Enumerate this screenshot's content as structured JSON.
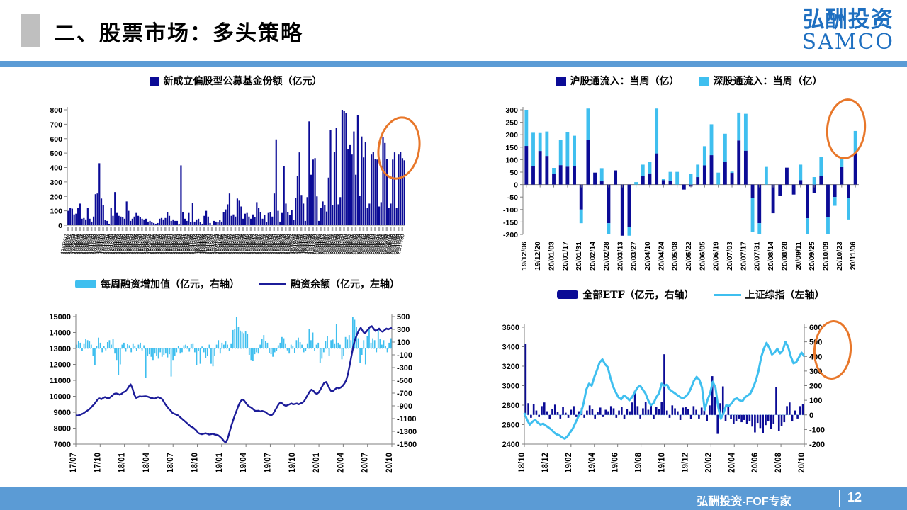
{
  "header": {
    "title": "二、股票市场：多头策略",
    "logo_cn": "弘酬投资",
    "logo_en": "SAMCO"
  },
  "footer": {
    "text": "弘酬投资-FOF专家",
    "page": "12"
  },
  "colors": {
    "navy": "#0B0B96",
    "navy_line": "#1C1C99",
    "sky": "#3FBFEF",
    "accent": "#5B9BD5",
    "orange": "#E8772A",
    "gray_box": "#BFBFBF",
    "axis": "#7F7F7F"
  },
  "chart_data": [
    {
      "type": "bar",
      "legend": "新成立偏股型公募基金份额（亿元）",
      "ylim": [
        0,
        800
      ],
      "yticks": [
        800,
        700,
        600,
        500,
        400,
        300,
        200,
        100,
        0
      ],
      "x_labels_start": "2017-07-07",
      "x_labels_interval_days": 7,
      "values": [
        100,
        120,
        115,
        75,
        80,
        120,
        150,
        45,
        50,
        40,
        120,
        45,
        25,
        60,
        215,
        220,
        430,
        185,
        140,
        35,
        30,
        10,
        120,
        65,
        230,
        85,
        65,
        60,
        55,
        45,
        165,
        100,
        30,
        45,
        60,
        85,
        65,
        55,
        45,
        40,
        45,
        25,
        30,
        20,
        15,
        10,
        15,
        45,
        50,
        40,
        50,
        90,
        65,
        30,
        40,
        30,
        30,
        10,
        415,
        90,
        45,
        30,
        85,
        20,
        155,
        25,
        40,
        45,
        20,
        10,
        65,
        100,
        60,
        15,
        5,
        30,
        25,
        20,
        35,
        25,
        90,
        110,
        145,
        220,
        65,
        75,
        60,
        185,
        170,
        130,
        45,
        80,
        85,
        60,
        45,
        75,
        55,
        160,
        120,
        90,
        45,
        70,
        20,
        85,
        90,
        60,
        220,
        595,
        100,
        25,
        85,
        410,
        150,
        90,
        70,
        105,
        35,
        190,
        340,
        505,
        210,
        150,
        30,
        195,
        720,
        350,
        455,
        465,
        200,
        30,
        120,
        165,
        140,
        95,
        330,
        660,
        140,
        510,
        675,
        145,
        195,
        800,
        795,
        780,
        525,
        560,
        490,
        650,
        350,
        765,
        205,
        615,
        470,
        575,
        120,
        150,
        490,
        510,
        460,
        455,
        130,
        160,
        610,
        570,
        460,
        120,
        150,
        455,
        505,
        120,
        490,
        510,
        465,
        450
      ]
    },
    {
      "type": "stacked-bar",
      "ylim": [
        -200,
        300
      ],
      "yticks": [
        300,
        250,
        200,
        150,
        100,
        50,
        0,
        -50,
        -100,
        -150,
        -200
      ],
      "series": [
        {
          "name": "沪股通流入：当周（亿）",
          "values": [
            155,
            75,
            135,
            115,
            42,
            78,
            72,
            74,
            -100,
            180,
            48,
            13,
            -155,
            57,
            -205,
            -170,
            0,
            33,
            45,
            125,
            18,
            15,
            0,
            -20,
            -8,
            30,
            77,
            118,
            0,
            92,
            47,
            177,
            136,
            -55,
            -155,
            0,
            -115,
            -45,
            68,
            -40,
            18,
            -135,
            -35,
            33,
            -130,
            -50,
            70,
            -55,
            127
          ]
        },
        {
          "name": "深股通流入：当周（亿）",
          "values": [
            145,
            133,
            72,
            98,
            25,
            100,
            138,
            122,
            -55,
            125,
            0,
            53,
            -45,
            0,
            0,
            -35,
            10,
            47,
            47,
            180,
            5,
            36,
            51,
            0,
            42,
            50,
            77,
            124,
            48,
            112,
            5,
            112,
            148,
            -135,
            -45,
            71,
            0,
            0,
            0,
            0,
            62,
            -65,
            30,
            77,
            -70,
            -35,
            42,
            -85,
            88
          ]
        }
      ],
      "x_tick_labels": [
        "19/12/06",
        "19/12/20",
        "20/01/03",
        "20/01/17",
        "20/01/31",
        "20/02/14",
        "20/02/28",
        "20/03/13",
        "20/03/27",
        "20/04/10",
        "20/04/24",
        "20/05/08",
        "20/05/22",
        "20/06/05",
        "20/06/19",
        "20/07/03",
        "20/07/17",
        "20/07/31",
        "20/08/14",
        "20/08/28",
        "20/09/11",
        "20/09/25",
        "20/10/09",
        "20/10/23",
        "20/11/06"
      ]
    },
    {
      "type": "bar+line",
      "left_lim": [
        7000,
        15000
      ],
      "left_ticks": [
        15000,
        14000,
        13000,
        12000,
        11000,
        10000,
        9000,
        8000,
        7000
      ],
      "right_lim": [
        -1500,
        500
      ],
      "right_ticks": [
        500,
        300,
        100,
        -100,
        -300,
        -500,
        -700,
        -900,
        -1100,
        -1300,
        -1500
      ],
      "x_tick_labels": [
        "17/07",
        "17/10",
        "18/01",
        "18/04",
        "18/07",
        "18/10",
        "19/01",
        "19/04",
        "19/07",
        "19/10",
        "20/01",
        "20/04",
        "20/07",
        "20/10"
      ],
      "bar_series": {
        "name": "每周融资增加值（亿元，右轴）",
        "axis": "right",
        "values": [
          60,
          120,
          90,
          -40,
          80,
          150,
          130,
          110,
          60,
          -120,
          -260,
          40,
          170,
          90,
          -60,
          40,
          -30,
          100,
          130,
          60,
          150,
          -80,
          -180,
          -420,
          -250,
          60,
          90,
          -50,
          70,
          50,
          -60,
          80,
          40,
          -40,
          60,
          90,
          -30,
          50,
          -460,
          -120,
          -90,
          -130,
          -180,
          -80,
          -120,
          -160,
          -60,
          -130,
          -100,
          -80,
          -140,
          -90,
          -440,
          -180,
          -120,
          -60,
          40,
          -80,
          -60,
          50,
          60,
          40,
          -50,
          70,
          80,
          -60,
          -260,
          -40,
          -240,
          30,
          -60,
          -150,
          -120,
          60,
          -240,
          -280,
          -120,
          60,
          130,
          -80,
          90,
          60,
          110,
          60,
          -40,
          80,
          290,
          310,
          490,
          340,
          280,
          260,
          240,
          270,
          230,
          -100,
          -180,
          -200,
          -90,
          -60,
          -80,
          60,
          150,
          210,
          120,
          90,
          -70,
          -90,
          -130,
          -60,
          -40,
          50,
          90,
          180,
          160,
          80,
          -30,
          -80,
          60,
          40,
          -70,
          130,
          170,
          100,
          60,
          -60,
          -40,
          80,
          310,
          130,
          250,
          -40,
          60,
          90,
          -230,
          -160,
          -60,
          120,
          200,
          -120,
          130,
          140,
          80,
          380,
          90,
          60,
          -170,
          -120,
          180,
          140,
          210,
          130,
          490,
          450,
          340,
          160,
          -230,
          -100,
          130,
          -250,
          200,
          310,
          90,
          160,
          130,
          -60,
          310,
          150,
          60,
          130,
          40,
          -60,
          90,
          160
        ]
      },
      "line_series": {
        "name": "融资余额（亿元，左轴）",
        "axis": "left",
        "values": [
          8800,
          8790,
          8820,
          8870,
          8920,
          9000,
          9080,
          9150,
          9250,
          9380,
          9500,
          9650,
          9800,
          9870,
          9820,
          9900,
          9950,
          9900,
          9870,
          9950,
          10050,
          10150,
          10180,
          10150,
          10100,
          10150,
          10250,
          10300,
          10420,
          10600,
          10750,
          10500,
          10100,
          9900,
          9950,
          10000,
          9980,
          9990,
          10000,
          9990,
          9950,
          9900,
          9880,
          9850,
          9900,
          9950,
          9900,
          9850,
          9700,
          9500,
          9350,
          9200,
          9100,
          8950,
          8900,
          8850,
          8800,
          8700,
          8600,
          8500,
          8400,
          8300,
          8200,
          8100,
          8050,
          7950,
          7850,
          7700,
          7650,
          7620,
          7650,
          7680,
          7650,
          7600,
          7620,
          7650,
          7600,
          7580,
          7550,
          7450,
          7350,
          7200,
          7100,
          7300,
          7700,
          8100,
          8450,
          8800,
          9100,
          9400,
          9650,
          9800,
          9750,
          9600,
          9450,
          9350,
          9300,
          9200,
          9100,
          9080,
          9100,
          9050,
          9080,
          9050,
          9000,
          8900,
          8850,
          8800,
          8900,
          9100,
          9300,
          9500,
          9620,
          9550,
          9450,
          9400,
          9450,
          9500,
          9550,
          9500,
          9520,
          9550,
          9500,
          9550,
          9600,
          9700,
          9900,
          10100,
          10300,
          10420,
          10350,
          10200,
          10150,
          10250,
          10450,
          10650,
          10850,
          10900,
          10700,
          10450,
          10300,
          10350,
          10450,
          10550,
          10500,
          10550,
          10650,
          10800,
          11000,
          11400,
          12000,
          12600,
          13200,
          13600,
          13900,
          14150,
          14300,
          14100,
          13950,
          14050,
          14200,
          14350,
          14400,
          14250,
          14100,
          14150,
          14250,
          14100,
          14050,
          14150,
          14250,
          14200,
          14250,
          14300
        ]
      }
    },
    {
      "type": "bar+line",
      "left_lim": [
        2400,
        3600
      ],
      "left_ticks": [
        3600,
        3400,
        3200,
        3000,
        2800,
        2600,
        2400
      ],
      "right_lim": [
        -200,
        600
      ],
      "right_ticks": [
        600,
        500,
        400,
        300,
        200,
        100,
        0,
        -100,
        -200
      ],
      "x_tick_labels": [
        "18/10",
        "18/12",
        "19/02",
        "19/04",
        "19/06",
        "19/08",
        "19/10",
        "19/12",
        "20/02",
        "20/04",
        "20/06",
        "20/08",
        "20/10"
      ],
      "bar_series": {
        "name": "全部ETF（亿元，右轴）",
        "axis": "right",
        "values": [
          485,
          80,
          -20,
          75,
          30,
          -15,
          60,
          85,
          25,
          -30,
          40,
          70,
          20,
          -25,
          55,
          15,
          -20,
          35,
          60,
          -15,
          25,
          45,
          -20,
          30,
          65,
          40,
          -25,
          20,
          50,
          -15,
          35,
          25,
          60,
          45,
          -20,
          30,
          55,
          -30,
          40,
          25,
          85,
          165,
          60,
          -25,
          45,
          90,
          35,
          70,
          -30,
          55,
          40,
          90,
          415,
          30,
          -20,
          65,
          45,
          25,
          -35,
          50,
          55,
          40,
          -30,
          60,
          35,
          -25,
          50,
          30,
          -40,
          65,
          265,
          120,
          -130,
          80,
          195,
          -40,
          55,
          -30,
          -60,
          -45,
          -25,
          -50,
          -35,
          -60,
          -40,
          -80,
          -120,
          -55,
          -90,
          -125,
          -70,
          -45,
          -95,
          -60,
          190,
          -110,
          -75,
          -50,
          60,
          85,
          -45,
          30,
          -25,
          60,
          75
        ]
      },
      "line_series": {
        "name": "上证综指（左轴）",
        "axis": "left",
        "values": [
          2720,
          2650,
          2600,
          2630,
          2650,
          2620,
          2600,
          2610,
          2590,
          2570,
          2550,
          2520,
          2500,
          2490,
          2470,
          2455,
          2480,
          2520,
          2560,
          2620,
          2680,
          2720,
          2820,
          2960,
          3020,
          3000,
          3090,
          3160,
          3240,
          3270,
          3220,
          3190,
          3080,
          2990,
          2930,
          2880,
          2860,
          2900,
          2880,
          2850,
          2880,
          2930,
          2980,
          3000,
          2960,
          2920,
          2850,
          2800,
          2820,
          2880,
          2920,
          3020,
          3000,
          3010,
          2960,
          2940,
          2920,
          2900,
          2880,
          2870,
          2890,
          2920,
          2980,
          3050,
          3090,
          3060,
          2980,
          2750,
          2850,
          2920,
          3040,
          2980,
          2780,
          2660,
          2720,
          2800,
          2790,
          2820,
          2860,
          2870,
          2850,
          2840,
          2880,
          2900,
          2920,
          2980,
          3050,
          3150,
          3290,
          3380,
          3440,
          3390,
          3320,
          3340,
          3380,
          3330,
          3360,
          3450,
          3400,
          3300,
          3230,
          3240,
          3290,
          3340,
          3300
        ]
      }
    }
  ]
}
